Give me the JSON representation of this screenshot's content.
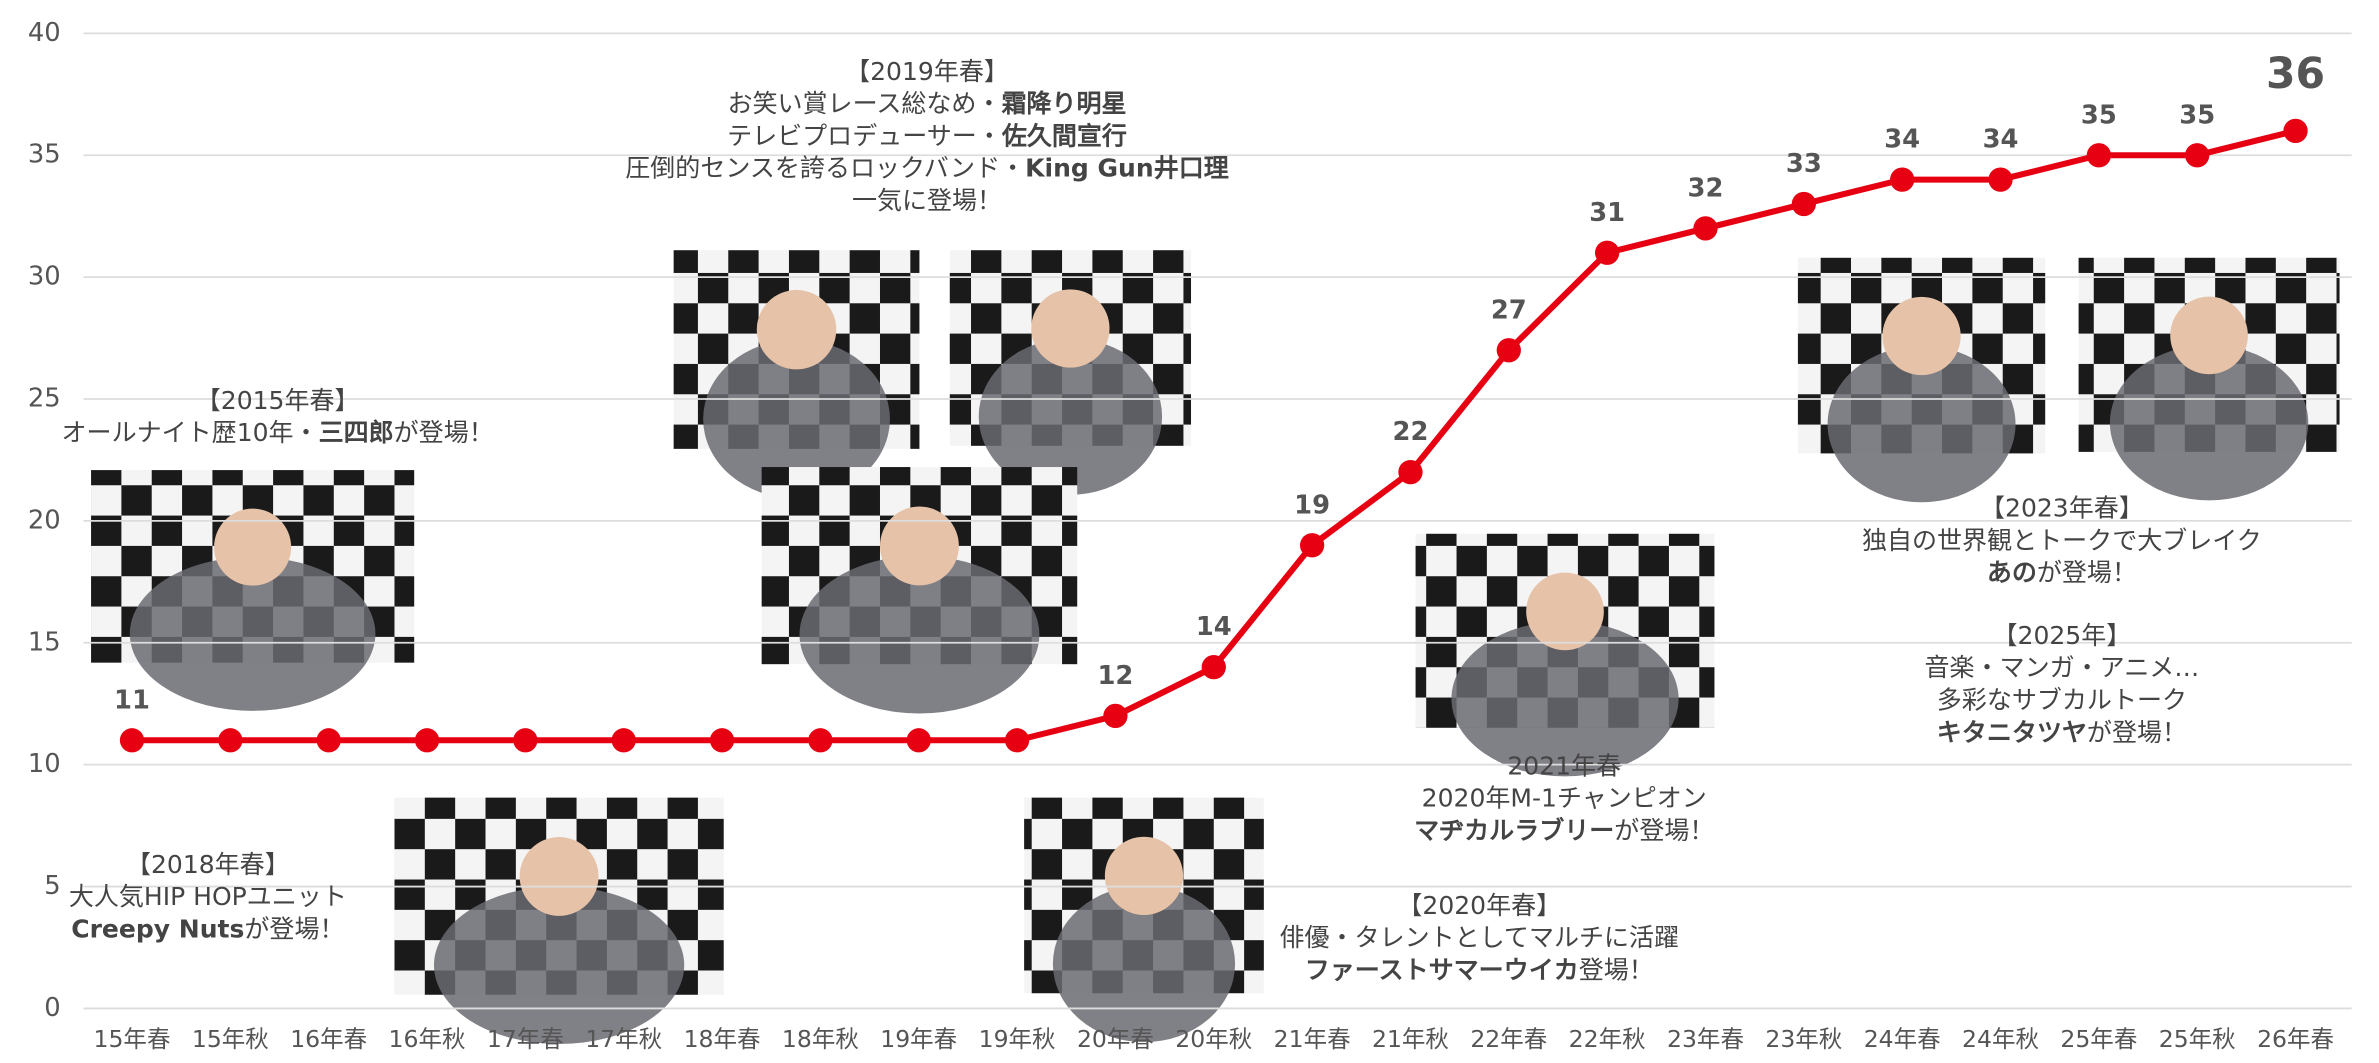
{
  "chart_data": {
    "type": "line",
    "categories": [
      "15年春",
      "15年秋",
      "16年春",
      "16年秋",
      "17年春",
      "17年秋",
      "18年春",
      "18年秋",
      "19年春",
      "19年秋",
      "20年春",
      "20年秋",
      "21年春",
      "21年秋",
      "22年春",
      "22年秋",
      "23年春",
      "23年秋",
      "24年春",
      "24年秋",
      "25年春",
      "25年秋",
      "26年春"
    ],
    "series": [
      {
        "color": "#e60012",
        "values": [
          11,
          11,
          11,
          11,
          11,
          11,
          11,
          11,
          11,
          11,
          12,
          14,
          19,
          22,
          27,
          31,
          32,
          33,
          34,
          34,
          35,
          35,
          36
        ],
        "value_labels": [
          "11",
          null,
          null,
          null,
          null,
          null,
          null,
          null,
          null,
          null,
          "12",
          "14",
          "19",
          "22",
          "27",
          "31",
          "32",
          "33",
          "34",
          "34",
          "35",
          "35",
          "36"
        ]
      }
    ],
    "ylim": [
      0,
      40
    ],
    "yticks": [
      0,
      5,
      10,
      15,
      20,
      25,
      30,
      35,
      40
    ],
    "grid": true,
    "annotations": [
      {
        "lines": [
          [
            {
              "text": "【2015年春】",
              "bold": false
            }
          ],
          [
            {
              "text": "オールナイト歴10年・",
              "bold": false
            },
            {
              "text": "三四郎",
              "bold": true
            },
            {
              "text": "が登場！",
              "bold": false
            }
          ]
        ]
      },
      {
        "lines": [
          [
            {
              "text": "【2018年春】",
              "bold": false
            }
          ],
          [
            {
              "text": "大人気HIP HOPユニット",
              "bold": false
            }
          ],
          [
            {
              "text": "Creepy Nuts",
              "bold": true
            },
            {
              "text": "が登場！",
              "bold": false
            }
          ]
        ]
      },
      {
        "lines": [
          [
            {
              "text": "【2019年春】",
              "bold": false
            }
          ],
          [
            {
              "text": "お笑い賞レース総なめ・",
              "bold": false
            },
            {
              "text": "霜降り明星",
              "bold": true
            }
          ],
          [
            {
              "text": "テレビプロデューサー・",
              "bold": false
            },
            {
              "text": "佐久間宣行",
              "bold": true
            }
          ],
          [
            {
              "text": "圧倒的センスを誇るロックバンド・",
              "bold": false
            },
            {
              "text": "King Gun井口理",
              "bold": true
            }
          ],
          [
            {
              "text": "一気に登場！",
              "bold": false
            }
          ]
        ]
      },
      {
        "lines": [
          [
            {
              "text": "【2020年春】",
              "bold": false
            }
          ],
          [
            {
              "text": "俳優・タレントとしてマルチに活躍",
              "bold": false
            }
          ],
          [
            {
              "text": "ファーストサマーウイカ",
              "bold": true
            },
            {
              "text": "登場！",
              "bold": false
            }
          ]
        ]
      },
      {
        "lines": [
          [
            {
              "text": "2021年春",
              "bold": false
            }
          ],
          [
            {
              "text": "2020年M-1チャンピオン",
              "bold": false
            }
          ],
          [
            {
              "text": "マヂカルラブリー",
              "bold": true
            },
            {
              "text": "が登場！",
              "bold": false
            }
          ]
        ]
      },
      {
        "lines": [
          [
            {
              "text": "【2023年春】",
              "bold": false
            }
          ],
          [
            {
              "text": "独自の世界観とトークで大ブレイク",
              "bold": false
            }
          ],
          [
            {
              "text": "あの",
              "bold": true
            },
            {
              "text": "が登場！",
              "bold": false
            }
          ]
        ]
      },
      {
        "lines": [
          [
            {
              "text": "【2025年】",
              "bold": false
            }
          ],
          [
            {
              "text": "音楽・マンガ・アニメ…",
              "bold": false
            }
          ],
          [
            {
              "text": "多彩なサブカルトーク",
              "bold": false
            }
          ],
          [
            {
              "text": "キタニタツヤ",
              "bold": true
            },
            {
              "text": "が登場！",
              "bold": false
            }
          ]
        ]
      }
    ]
  }
}
